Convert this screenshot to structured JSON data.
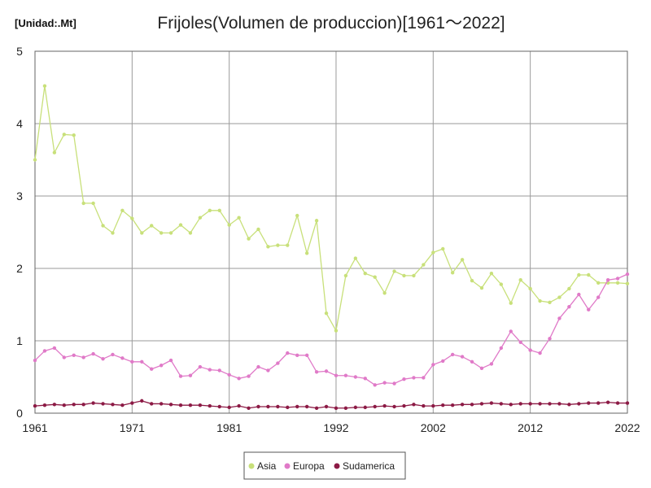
{
  "chart_data": {
    "type": "line",
    "title": "Frijoles(Volumen de produccion)[1961～2022]",
    "unit_label": "[Unidad:.Mt]",
    "xlabel": "",
    "ylabel": "",
    "xlim": [
      1961,
      2022
    ],
    "ylim": [
      0,
      5
    ],
    "x_ticks": [
      "1961",
      "1971",
      "1981",
      "1992",
      "2002",
      "2012",
      "2022"
    ],
    "y_ticks": [
      "0",
      "1",
      "2",
      "3",
      "4",
      "5"
    ],
    "grid": true,
    "legend_position": "bottom-center",
    "x": [
      1961,
      1962,
      1963,
      1964,
      1965,
      1966,
      1967,
      1968,
      1969,
      1970,
      1971,
      1972,
      1973,
      1974,
      1975,
      1976,
      1977,
      1978,
      1979,
      1980,
      1981,
      1982,
      1983,
      1984,
      1985,
      1986,
      1987,
      1988,
      1989,
      1990,
      1991,
      1992,
      1993,
      1994,
      1995,
      1996,
      1997,
      1998,
      1999,
      2000,
      2001,
      2002,
      2003,
      2004,
      2005,
      2006,
      2007,
      2008,
      2009,
      2010,
      2011,
      2012,
      2013,
      2014,
      2015,
      2016,
      2017,
      2018,
      2019,
      2020,
      2021,
      2022
    ],
    "series": [
      {
        "name": "Asia",
        "color": "#c8e07a",
        "values": [
          3.5,
          4.52,
          3.6,
          3.85,
          3.84,
          2.9,
          2.9,
          2.59,
          2.49,
          2.8,
          2.69,
          2.49,
          2.59,
          2.49,
          2.49,
          2.6,
          2.49,
          2.7,
          2.8,
          2.8,
          2.6,
          2.7,
          2.41,
          2.54,
          2.3,
          2.32,
          2.32,
          2.73,
          2.21,
          2.66,
          1.38,
          1.14,
          1.9,
          2.14,
          1.93,
          1.88,
          1.66,
          1.96,
          1.9,
          1.9,
          2.05,
          2.22,
          2.27,
          1.94,
          2.12,
          1.83,
          1.73,
          1.93,
          1.78,
          1.52,
          1.84,
          1.72,
          1.55,
          1.53,
          1.6,
          1.72,
          1.91,
          1.91,
          1.8,
          1.8,
          1.8,
          1.79
        ]
      },
      {
        "name": "Europa",
        "color": "#e07ac8",
        "values": [
          0.73,
          0.86,
          0.9,
          0.77,
          0.8,
          0.77,
          0.82,
          0.75,
          0.81,
          0.76,
          0.71,
          0.71,
          0.61,
          0.66,
          0.73,
          0.51,
          0.52,
          0.64,
          0.6,
          0.59,
          0.53,
          0.48,
          0.51,
          0.64,
          0.59,
          0.69,
          0.83,
          0.8,
          0.8,
          0.57,
          0.58,
          0.52,
          0.52,
          0.5,
          0.48,
          0.39,
          0.42,
          0.41,
          0.47,
          0.49,
          0.49,
          0.67,
          0.72,
          0.81,
          0.78,
          0.71,
          0.62,
          0.68,
          0.9,
          1.13,
          0.98,
          0.87,
          0.83,
          1.03,
          1.31,
          1.47,
          1.64,
          1.43,
          1.6,
          1.84,
          1.86,
          1.92
        ]
      },
      {
        "name": "Sudamerica",
        "color": "#8c1a45",
        "values": [
          0.1,
          0.11,
          0.12,
          0.11,
          0.12,
          0.12,
          0.14,
          0.13,
          0.12,
          0.11,
          0.14,
          0.17,
          0.13,
          0.13,
          0.12,
          0.11,
          0.11,
          0.11,
          0.1,
          0.09,
          0.08,
          0.1,
          0.07,
          0.09,
          0.09,
          0.09,
          0.08,
          0.09,
          0.09,
          0.07,
          0.09,
          0.07,
          0.07,
          0.08,
          0.08,
          0.09,
          0.1,
          0.09,
          0.1,
          0.12,
          0.1,
          0.1,
          0.11,
          0.11,
          0.12,
          0.12,
          0.13,
          0.14,
          0.13,
          0.12,
          0.13,
          0.13,
          0.13,
          0.13,
          0.13,
          0.12,
          0.13,
          0.14,
          0.14,
          0.15,
          0.14,
          0.14
        ]
      }
    ]
  }
}
